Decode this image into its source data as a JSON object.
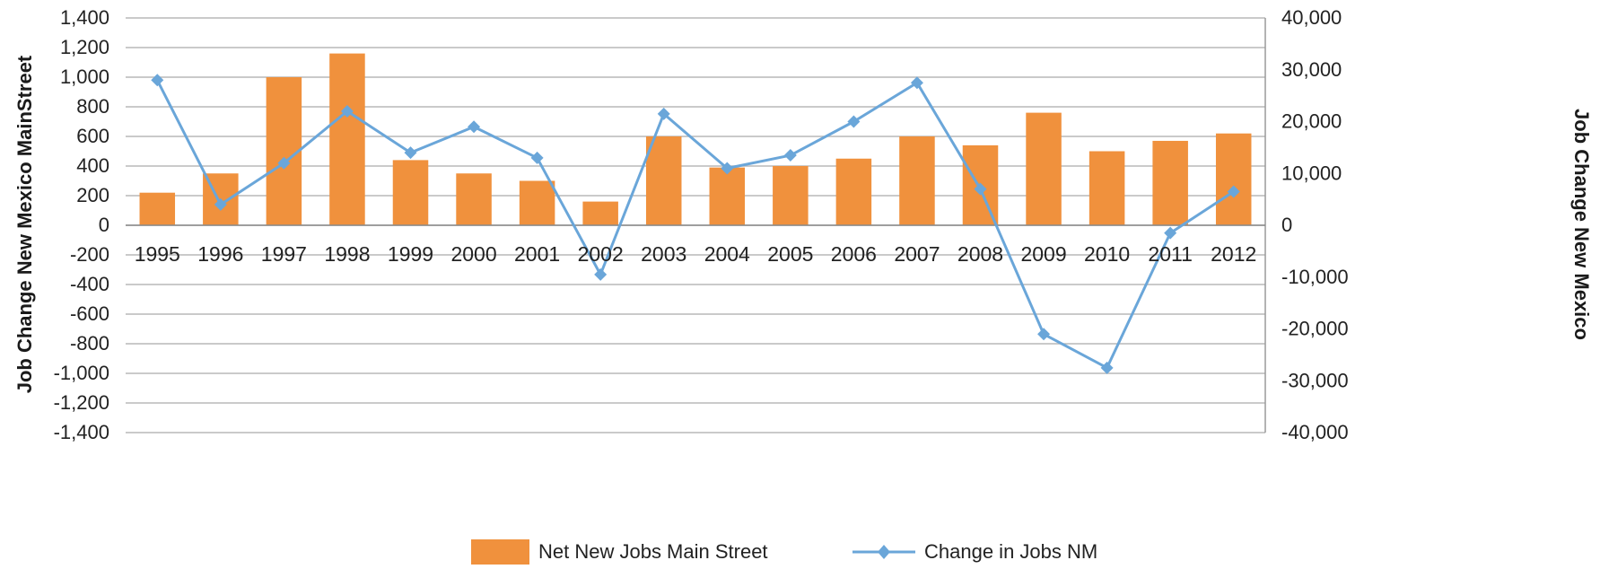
{
  "chart_data": {
    "type": "bar",
    "categories": [
      "1995",
      "1996",
      "1997",
      "1998",
      "1999",
      "2000",
      "2001",
      "2002",
      "2003",
      "2004",
      "2005",
      "2006",
      "2007",
      "2008",
      "2009",
      "2010",
      "2011",
      "2012"
    ],
    "series": [
      {
        "name": "Net New Jobs Main Street",
        "type": "bar",
        "axis": "left",
        "color": "#f0913d",
        "values": [
          220,
          350,
          1000,
          1160,
          440,
          350,
          300,
          160,
          600,
          390,
          400,
          450,
          600,
          540,
          760,
          500,
          570,
          620
        ]
      },
      {
        "name": "Change in Jobs NM",
        "type": "line",
        "axis": "right",
        "color": "#6aa6d9",
        "marker": "diamond",
        "values": [
          28000,
          4000,
          12000,
          22000,
          14000,
          19000,
          13000,
          -9500,
          21500,
          11000,
          13500,
          20000,
          27500,
          7000,
          -21000,
          -27500,
          -1500,
          6500
        ]
      }
    ],
    "ylabel": "Job Change New Mexico MainStreet",
    "y2label": "Job Change New Mexico",
    "ylim": [
      -1400,
      1400
    ],
    "y2lim": [
      -40000,
      40000
    ],
    "yticks": [
      "1,400",
      "1,200",
      "1,000",
      "800",
      "600",
      "400",
      "200",
      "0",
      "-200",
      "-400",
      "-600",
      "-800",
      "-1,000",
      "-1,200",
      "-1,400"
    ],
    "y2ticks": [
      "40,000",
      "30,000",
      "20,000",
      "10,000",
      "0",
      "-10,000",
      "-20,000",
      "-30,000",
      "-40,000"
    ],
    "grid": true,
    "legend_position": "bottom-center"
  }
}
